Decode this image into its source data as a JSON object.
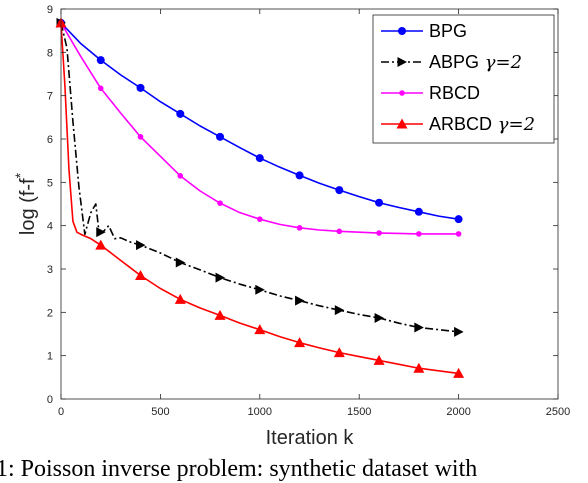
{
  "chart_data": {
    "type": "line",
    "xlabel": "Iteration k",
    "ylabel": "log (f-f*)",
    "xlim": [
      0,
      2500
    ],
    "ylim": [
      0,
      9
    ],
    "xticks": [
      0,
      500,
      1000,
      1500,
      2000,
      2500
    ],
    "yticks": [
      0,
      1,
      2,
      3,
      4,
      5,
      6,
      7,
      8,
      9
    ],
    "grid": false,
    "legend_position": "top-right",
    "series": [
      {
        "name": "BPG",
        "color": "#0000ff",
        "dash": "solid",
        "marker": "circle",
        "x": [
          0,
          100,
          200,
          300,
          400,
          500,
          600,
          700,
          800,
          900,
          1000,
          1100,
          1200,
          1300,
          1400,
          1500,
          1600,
          1700,
          1800,
          1900,
          2000
        ],
        "y": [
          8.68,
          8.2,
          7.82,
          7.48,
          7.18,
          6.86,
          6.58,
          6.3,
          6.05,
          5.8,
          5.56,
          5.35,
          5.16,
          4.98,
          4.82,
          4.67,
          4.53,
          4.42,
          4.32,
          4.22,
          4.15
        ],
        "marker_x": [
          0,
          200,
          400,
          600,
          800,
          1000,
          1200,
          1400,
          1600,
          1800,
          2000
        ],
        "marker_y": [
          8.68,
          7.82,
          7.18,
          6.58,
          6.05,
          5.56,
          5.16,
          4.82,
          4.53,
          4.32,
          4.15
        ]
      },
      {
        "name": "ABPG γ=2",
        "color": "#000000",
        "dash": "dashdot",
        "marker": "triangle-right",
        "x": [
          0,
          30,
          60,
          90,
          120,
          150,
          175,
          190,
          210,
          240,
          270,
          300,
          350,
          400,
          500,
          600,
          700,
          800,
          900,
          1000,
          1100,
          1200,
          1300,
          1400,
          1500,
          1600,
          1700,
          1800,
          1900,
          2000
        ],
        "y": [
          8.68,
          8.1,
          6.4,
          4.9,
          3.8,
          4.3,
          4.5,
          3.9,
          3.85,
          4.0,
          3.7,
          3.72,
          3.62,
          3.55,
          3.37,
          3.15,
          2.98,
          2.8,
          2.65,
          2.52,
          2.38,
          2.27,
          2.15,
          2.05,
          1.95,
          1.87,
          1.75,
          1.65,
          1.6,
          1.55
        ],
        "marker_x": [
          0,
          200,
          400,
          600,
          800,
          1000,
          1200,
          1400,
          1600,
          1800,
          2000
        ],
        "marker_y": [
          8.68,
          3.85,
          3.55,
          3.15,
          2.8,
          2.52,
          2.27,
          2.05,
          1.87,
          1.65,
          1.55
        ]
      },
      {
        "name": "RBCD",
        "color": "#ff00ff",
        "dash": "solid",
        "marker": "point",
        "x": [
          0,
          100,
          200,
          300,
          400,
          500,
          600,
          700,
          800,
          900,
          1000,
          1100,
          1200,
          1300,
          1400,
          1500,
          1600,
          1700,
          1800,
          1900,
          2000
        ],
        "y": [
          8.68,
          7.9,
          7.17,
          6.6,
          6.05,
          5.6,
          5.15,
          4.8,
          4.52,
          4.3,
          4.15,
          4.03,
          3.95,
          3.9,
          3.87,
          3.85,
          3.83,
          3.82,
          3.81,
          3.81,
          3.81
        ],
        "marker_x": [
          0,
          200,
          400,
          600,
          800,
          1000,
          1200,
          1400,
          1600,
          1800,
          2000
        ],
        "marker_y": [
          8.68,
          7.17,
          6.05,
          5.15,
          4.52,
          4.15,
          3.95,
          3.87,
          3.83,
          3.81,
          3.81
        ]
      },
      {
        "name": "ARBCD γ=2",
        "color": "#ff0000",
        "dash": "solid",
        "marker": "triangle-up",
        "x": [
          0,
          20,
          40,
          60,
          80,
          100,
          150,
          200,
          300,
          400,
          500,
          600,
          700,
          800,
          900,
          1000,
          1100,
          1200,
          1300,
          1400,
          1500,
          1600,
          1700,
          1800,
          1900,
          2000
        ],
        "y": [
          8.68,
          7.2,
          5.3,
          4.1,
          3.85,
          3.8,
          3.7,
          3.55,
          3.2,
          2.85,
          2.55,
          2.3,
          2.1,
          1.93,
          1.75,
          1.6,
          1.44,
          1.3,
          1.18,
          1.07,
          0.98,
          0.89,
          0.8,
          0.71,
          0.65,
          0.59
        ],
        "marker_x": [
          0,
          200,
          400,
          600,
          800,
          1000,
          1200,
          1400,
          1600,
          1800,
          2000
        ],
        "marker_y": [
          8.68,
          3.55,
          2.85,
          2.3,
          1.93,
          1.6,
          1.3,
          1.07,
          0.89,
          0.71,
          0.59
        ]
      }
    ]
  },
  "caption": "1: Poisson inverse problem: synthetic dataset with"
}
